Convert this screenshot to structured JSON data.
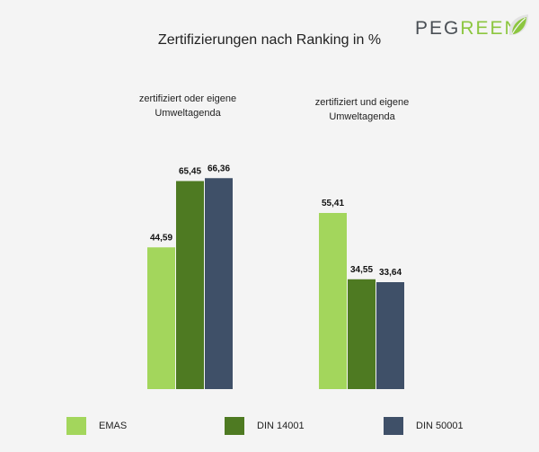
{
  "logo": {
    "part1": "PEG",
    "part2": "REEN"
  },
  "chart_data": {
    "type": "bar",
    "title": "Zertifizierungen nach Ranking in %",
    "categories": [
      "zertifiziert oder eigene Umweltagenda",
      "zertifiziert und eigene Umweltagenda"
    ],
    "category_lines": [
      [
        "zertifiziert oder eigene",
        "Umweltagenda"
      ],
      [
        "zertifiziert und eigene",
        "Umweltagenda"
      ]
    ],
    "series": [
      {
        "name": "EMAS",
        "values": [
          44.59,
          55.41
        ],
        "labels": [
          "44,59",
          "55,41"
        ],
        "color": "#a3d65c"
      },
      {
        "name": "DIN 14001",
        "values": [
          65.45,
          34.55
        ],
        "labels": [
          "65,45",
          "34,55"
        ],
        "color": "#4e7a22"
      },
      {
        "name": "DIN 50001",
        "values": [
          66.36,
          33.64
        ],
        "labels": [
          "66,36",
          "33,64"
        ],
        "color": "#3f5068"
      }
    ],
    "legend_position": "bottom",
    "grid": false
  }
}
